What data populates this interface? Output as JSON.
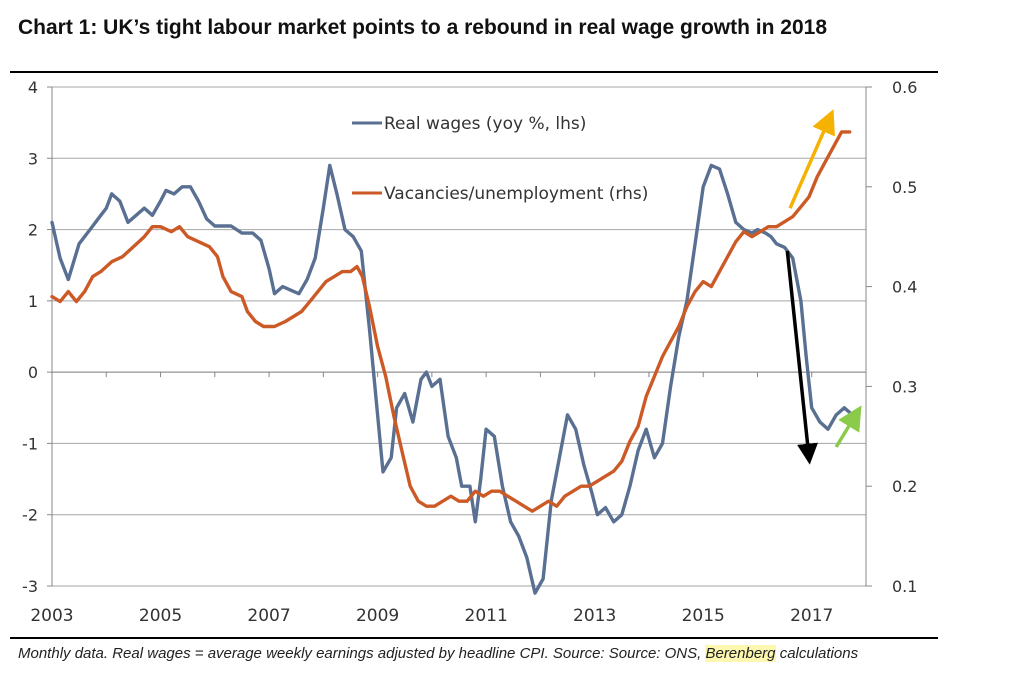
{
  "title": "Chart 1: UK’s tight labour market points to a rebound in real wage growth in 2018",
  "caption": {
    "text_before": "Monthly data. Real wages = average weekly earnings adjusted by headline CPI. Source: Source: ONS, ",
    "highlight": "Berenberg",
    "text_after": " calculations"
  },
  "colors": {
    "real_wages": "#5a7092",
    "vacancies": "#cc5a26",
    "arrow_yellow": "#f5b200",
    "arrow_black": "#000000",
    "arrow_green": "#8acb4a",
    "grid": "#a6a6a6"
  },
  "chart_data": {
    "type": "line",
    "x_ticks": [
      "2003",
      "2005",
      "2007",
      "2009",
      "2011",
      "2013",
      "2015",
      "2017"
    ],
    "x_range": [
      2003.0,
      2018.0
    ],
    "y_left": {
      "min": -3,
      "max": 4,
      "ticks": [
        "4",
        "3",
        "2",
        "1",
        "0",
        "-1",
        "-2",
        "-3"
      ],
      "tick_values": [
        4,
        3,
        2,
        1,
        0,
        -1,
        -2,
        -3
      ]
    },
    "y_right": {
      "min": 0.1,
      "max": 0.6,
      "ticks": [
        "0.6",
        "0.5",
        "0.4",
        "0.3",
        "0.2",
        "0.1"
      ],
      "tick_values": [
        0.6,
        0.5,
        0.4,
        0.3,
        0.2,
        0.1
      ]
    },
    "series": [
      {
        "name": "Real wages (yoy %, lhs)",
        "axis": "left",
        "points": [
          [
            2003.0,
            2.1
          ],
          [
            2003.15,
            1.6
          ],
          [
            2003.3,
            1.3
          ],
          [
            2003.5,
            1.8
          ],
          [
            2003.7,
            2.0
          ],
          [
            2003.9,
            2.2
          ],
          [
            2004.0,
            2.3
          ],
          [
            2004.1,
            2.5
          ],
          [
            2004.25,
            2.4
          ],
          [
            2004.4,
            2.1
          ],
          [
            2004.55,
            2.2
          ],
          [
            2004.7,
            2.3
          ],
          [
            2004.85,
            2.2
          ],
          [
            2005.0,
            2.4
          ],
          [
            2005.1,
            2.55
          ],
          [
            2005.25,
            2.5
          ],
          [
            2005.4,
            2.6
          ],
          [
            2005.55,
            2.6
          ],
          [
            2005.7,
            2.4
          ],
          [
            2005.85,
            2.15
          ],
          [
            2006.0,
            2.05
          ],
          [
            2006.3,
            2.05
          ],
          [
            2006.5,
            1.95
          ],
          [
            2006.7,
            1.95
          ],
          [
            2006.85,
            1.85
          ],
          [
            2007.0,
            1.45
          ],
          [
            2007.1,
            1.1
          ],
          [
            2007.25,
            1.2
          ],
          [
            2007.4,
            1.15
          ],
          [
            2007.55,
            1.1
          ],
          [
            2007.7,
            1.3
          ],
          [
            2007.85,
            1.6
          ],
          [
            2008.0,
            2.3
          ],
          [
            2008.12,
            2.9
          ],
          [
            2008.25,
            2.5
          ],
          [
            2008.4,
            2.0
          ],
          [
            2008.55,
            1.9
          ],
          [
            2008.7,
            1.7
          ],
          [
            2008.85,
            0.6
          ],
          [
            2009.0,
            -0.6
          ],
          [
            2009.1,
            -1.4
          ],
          [
            2009.25,
            -1.2
          ],
          [
            2009.35,
            -0.5
          ],
          [
            2009.5,
            -0.3
          ],
          [
            2009.65,
            -0.7
          ],
          [
            2009.8,
            -0.1
          ],
          [
            2009.9,
            0.0
          ],
          [
            2010.0,
            -0.2
          ],
          [
            2010.15,
            -0.1
          ],
          [
            2010.3,
            -0.9
          ],
          [
            2010.45,
            -1.2
          ],
          [
            2010.55,
            -1.6
          ],
          [
            2010.7,
            -1.6
          ],
          [
            2010.8,
            -2.1
          ],
          [
            2010.9,
            -1.5
          ],
          [
            2011.0,
            -0.8
          ],
          [
            2011.15,
            -0.9
          ],
          [
            2011.3,
            -1.6
          ],
          [
            2011.45,
            -2.1
          ],
          [
            2011.6,
            -2.3
          ],
          [
            2011.75,
            -2.6
          ],
          [
            2011.9,
            -3.1
          ],
          [
            2012.05,
            -2.9
          ],
          [
            2012.2,
            -1.8
          ],
          [
            2012.35,
            -1.2
          ],
          [
            2012.5,
            -0.6
          ],
          [
            2012.65,
            -0.8
          ],
          [
            2012.8,
            -1.3
          ],
          [
            2012.95,
            -1.7
          ],
          [
            2013.05,
            -2.0
          ],
          [
            2013.2,
            -1.9
          ],
          [
            2013.35,
            -2.1
          ],
          [
            2013.5,
            -2.0
          ],
          [
            2013.65,
            -1.6
          ],
          [
            2013.8,
            -1.1
          ],
          [
            2013.95,
            -0.8
          ],
          [
            2014.1,
            -1.2
          ],
          [
            2014.25,
            -1.0
          ],
          [
            2014.4,
            -0.2
          ],
          [
            2014.55,
            0.5
          ],
          [
            2014.7,
            1.0
          ],
          [
            2014.85,
            1.8
          ],
          [
            2015.0,
            2.6
          ],
          [
            2015.15,
            2.9
          ],
          [
            2015.3,
            2.85
          ],
          [
            2015.45,
            2.5
          ],
          [
            2015.6,
            2.1
          ],
          [
            2015.75,
            2.0
          ],
          [
            2015.9,
            1.95
          ],
          [
            2016.0,
            2.0
          ],
          [
            2016.15,
            1.95
          ],
          [
            2016.25,
            1.9
          ],
          [
            2016.35,
            1.8
          ],
          [
            2016.5,
            1.75
          ],
          [
            2016.65,
            1.6
          ],
          [
            2016.8,
            1.0
          ],
          [
            2016.9,
            0.2
          ],
          [
            2017.0,
            -0.5
          ],
          [
            2017.15,
            -0.7
          ],
          [
            2017.3,
            -0.8
          ],
          [
            2017.45,
            -0.6
          ],
          [
            2017.6,
            -0.5
          ],
          [
            2017.75,
            -0.6
          ]
        ]
      },
      {
        "name": "Vacancies/unemployment (rhs)",
        "axis": "right",
        "points": [
          [
            2003.0,
            0.39
          ],
          [
            2003.15,
            0.385
          ],
          [
            2003.3,
            0.395
          ],
          [
            2003.45,
            0.385
          ],
          [
            2003.6,
            0.395
          ],
          [
            2003.75,
            0.41
          ],
          [
            2003.9,
            0.415
          ],
          [
            2004.1,
            0.425
          ],
          [
            2004.3,
            0.43
          ],
          [
            2004.5,
            0.44
          ],
          [
            2004.7,
            0.45
          ],
          [
            2004.85,
            0.46
          ],
          [
            2005.0,
            0.46
          ],
          [
            2005.2,
            0.455
          ],
          [
            2005.35,
            0.46
          ],
          [
            2005.5,
            0.45
          ],
          [
            2005.7,
            0.445
          ],
          [
            2005.9,
            0.44
          ],
          [
            2006.05,
            0.43
          ],
          [
            2006.15,
            0.41
          ],
          [
            2006.3,
            0.395
          ],
          [
            2006.5,
            0.39
          ],
          [
            2006.6,
            0.375
          ],
          [
            2006.75,
            0.365
          ],
          [
            2006.9,
            0.36
          ],
          [
            2007.1,
            0.36
          ],
          [
            2007.3,
            0.365
          ],
          [
            2007.45,
            0.37
          ],
          [
            2007.6,
            0.375
          ],
          [
            2007.75,
            0.385
          ],
          [
            2007.9,
            0.395
          ],
          [
            2008.05,
            0.405
          ],
          [
            2008.2,
            0.41
          ],
          [
            2008.35,
            0.415
          ],
          [
            2008.5,
            0.415
          ],
          [
            2008.62,
            0.42
          ],
          [
            2008.72,
            0.41
          ],
          [
            2008.85,
            0.38
          ],
          [
            2009.0,
            0.34
          ],
          [
            2009.15,
            0.31
          ],
          [
            2009.3,
            0.27
          ],
          [
            2009.45,
            0.235
          ],
          [
            2009.6,
            0.2
          ],
          [
            2009.75,
            0.185
          ],
          [
            2009.9,
            0.18
          ],
          [
            2010.05,
            0.18
          ],
          [
            2010.2,
            0.185
          ],
          [
            2010.35,
            0.19
          ],
          [
            2010.5,
            0.185
          ],
          [
            2010.65,
            0.185
          ],
          [
            2010.8,
            0.195
          ],
          [
            2010.95,
            0.19
          ],
          [
            2011.1,
            0.195
          ],
          [
            2011.25,
            0.195
          ],
          [
            2011.4,
            0.19
          ],
          [
            2011.55,
            0.185
          ],
          [
            2011.7,
            0.18
          ],
          [
            2011.85,
            0.175
          ],
          [
            2012.0,
            0.18
          ],
          [
            2012.15,
            0.185
          ],
          [
            2012.3,
            0.18
          ],
          [
            2012.45,
            0.19
          ],
          [
            2012.6,
            0.195
          ],
          [
            2012.75,
            0.2
          ],
          [
            2012.9,
            0.2
          ],
          [
            2013.05,
            0.205
          ],
          [
            2013.2,
            0.21
          ],
          [
            2013.35,
            0.215
          ],
          [
            2013.5,
            0.225
          ],
          [
            2013.65,
            0.245
          ],
          [
            2013.8,
            0.26
          ],
          [
            2013.95,
            0.29
          ],
          [
            2014.1,
            0.31
          ],
          [
            2014.25,
            0.33
          ],
          [
            2014.4,
            0.345
          ],
          [
            2014.55,
            0.36
          ],
          [
            2014.7,
            0.38
          ],
          [
            2014.85,
            0.395
          ],
          [
            2015.0,
            0.405
          ],
          [
            2015.15,
            0.4
          ],
          [
            2015.3,
            0.415
          ],
          [
            2015.45,
            0.43
          ],
          [
            2015.6,
            0.445
          ],
          [
            2015.75,
            0.455
          ],
          [
            2015.9,
            0.45
          ],
          [
            2016.05,
            0.455
          ],
          [
            2016.2,
            0.46
          ],
          [
            2016.35,
            0.46
          ],
          [
            2016.5,
            0.465
          ],
          [
            2016.65,
            0.47
          ],
          [
            2016.8,
            0.48
          ],
          [
            2016.95,
            0.49
          ],
          [
            2017.1,
            0.51
          ],
          [
            2017.25,
            0.525
          ],
          [
            2017.4,
            0.54
          ],
          [
            2017.55,
            0.555
          ],
          [
            2017.7,
            0.555
          ]
        ]
      }
    ],
    "annotations": [
      {
        "type": "arrow",
        "color": "yellow",
        "from": [
          2016.6,
          2.3
        ],
        "to": [
          2017.35,
          3.6
        ]
      },
      {
        "type": "arrow",
        "color": "black",
        "from": [
          2016.55,
          1.7
        ],
        "to": [
          2016.95,
          -1.2
        ]
      },
      {
        "type": "arrow",
        "color": "green",
        "from": [
          2017.45,
          -1.05
        ],
        "to": [
          2017.85,
          -0.55
        ]
      }
    ]
  }
}
